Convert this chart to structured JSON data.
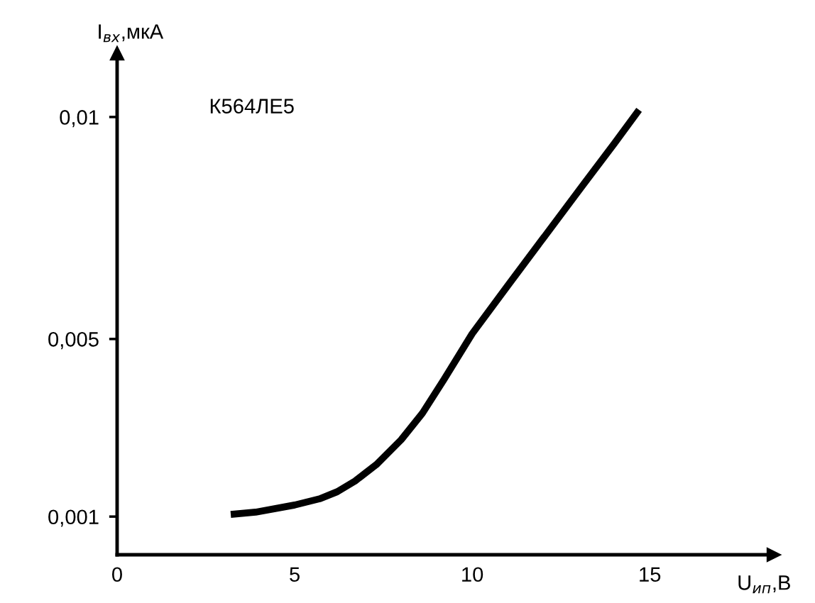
{
  "chart_data": {
    "type": "line",
    "xlabel": "U$_{ип}$,В",
    "ylabel": "I$_{вх}$,мкА",
    "annotations": [
      {
        "text": "К564ЛЕ5"
      }
    ],
    "series": [
      {
        "color": "#000000",
        "x": [
          3.2,
          3.9,
          5,
          5.7,
          6.2,
          6.7,
          7.3,
          8,
          8.6,
          9.2,
          10,
          11,
          12,
          13,
          14,
          14.7
        ],
        "values": [
          0.00105,
          0.0011,
          0.00126,
          0.0014,
          0.00156,
          0.0018,
          0.00217,
          0.00273,
          0.00333,
          0.00408,
          0.00512,
          0.0062,
          0.00727,
          0.00834,
          0.0094,
          0.01016
        ]
      }
    ],
    "xlim": [
      0,
      18.5
    ],
    "ylim": [
      0.00014,
      0.01144
    ],
    "xticks": [
      0,
      5,
      10,
      15
    ],
    "yticks": [
      {
        "value": 0.001,
        "label": "0,001"
      },
      {
        "value": 0.005,
        "label": "0,005"
      },
      {
        "value": 0.01,
        "label": "0,01"
      }
    ],
    "grid": false,
    "legend": false,
    "marker": "none",
    "line_style": "solid"
  }
}
